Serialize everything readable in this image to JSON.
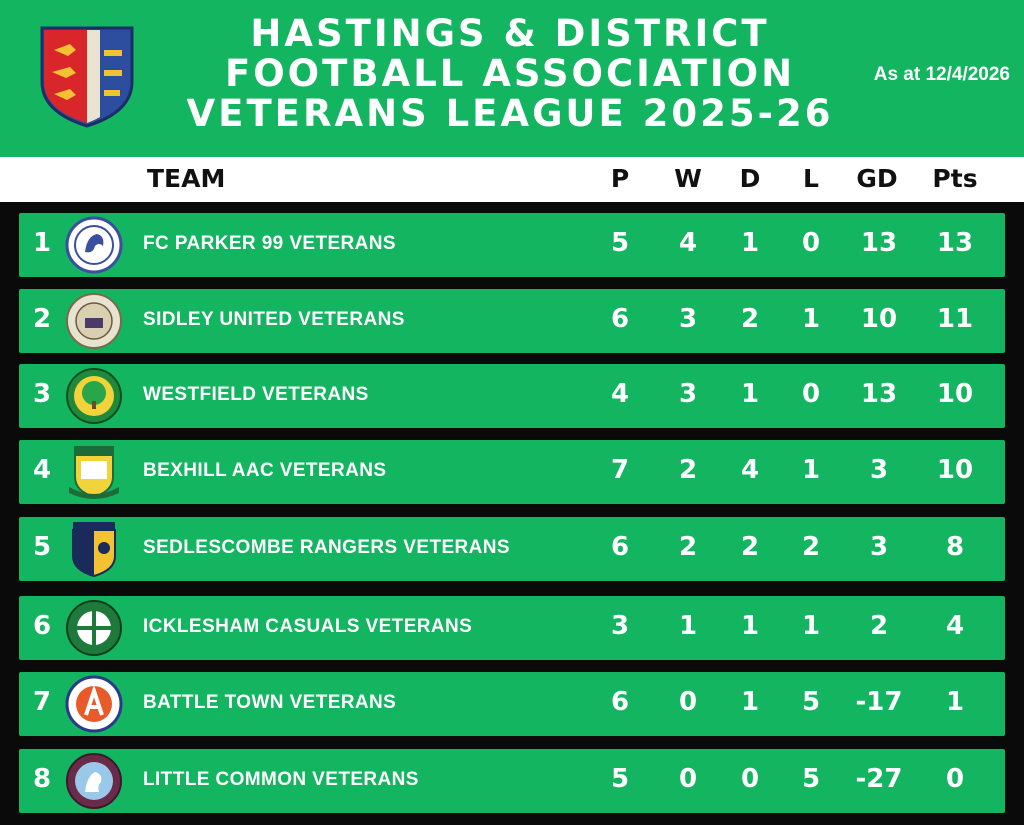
{
  "header": {
    "title_lines": [
      "HASTINGS & DISTRICT",
      "FOOTBALL ASSOCIATION",
      "VETERANS LEAGUE 2025-26"
    ],
    "as_at": "As at 12/4/2026"
  },
  "columns": {
    "team": "TEAM",
    "p": "P",
    "w": "W",
    "d": "D",
    "l": "L",
    "gd": "GD",
    "pts": "Pts"
  },
  "colors": {
    "green": "#13b561",
    "black": "#0a0a0a",
    "white": "#ffffff"
  },
  "rows": [
    {
      "pos": "1",
      "team": "FC PARKER 99 VETERANS",
      "p": "5",
      "w": "4",
      "d": "1",
      "l": "0",
      "gd": "13",
      "pts": "13",
      "badge": "fc-parker-badge"
    },
    {
      "pos": "2",
      "team": "SIDLEY UNITED VETERANS",
      "p": "6",
      "w": "3",
      "d": "2",
      "l": "1",
      "gd": "10",
      "pts": "11",
      "badge": "sidley-united-badge"
    },
    {
      "pos": "3",
      "team": "WESTFIELD VETERANS",
      "p": "4",
      "w": "3",
      "d": "1",
      "l": "0",
      "gd": "13",
      "pts": "10",
      "badge": "westfield-badge"
    },
    {
      "pos": "4",
      "team": "BEXHILL AAC VETERANS",
      "p": "7",
      "w": "2",
      "d": "4",
      "l": "1",
      "gd": "3",
      "pts": "10",
      "badge": "bexhill-aac-badge"
    },
    {
      "pos": "5",
      "team": "SEDLESCOMBE RANGERS VETERANS",
      "p": "6",
      "w": "2",
      "d": "2",
      "l": "2",
      "gd": "3",
      "pts": "8",
      "badge": "sedlescombe-badge"
    },
    {
      "pos": "6",
      "team": "ICKLESHAM CASUALS VETERANS",
      "p": "3",
      "w": "1",
      "d": "1",
      "l": "1",
      "gd": "2",
      "pts": "4",
      "badge": "icklesham-badge"
    },
    {
      "pos": "7",
      "team": "BATTLE TOWN VETERANS",
      "p": "6",
      "w": "0",
      "d": "1",
      "l": "5",
      "gd": "-17",
      "pts": "1",
      "badge": "battle-town-badge"
    },
    {
      "pos": "8",
      "team": "LITTLE COMMON VETERANS",
      "p": "5",
      "w": "0",
      "d": "0",
      "l": "5",
      "gd": "-27",
      "pts": "0",
      "badge": "little-common-badge"
    }
  ]
}
